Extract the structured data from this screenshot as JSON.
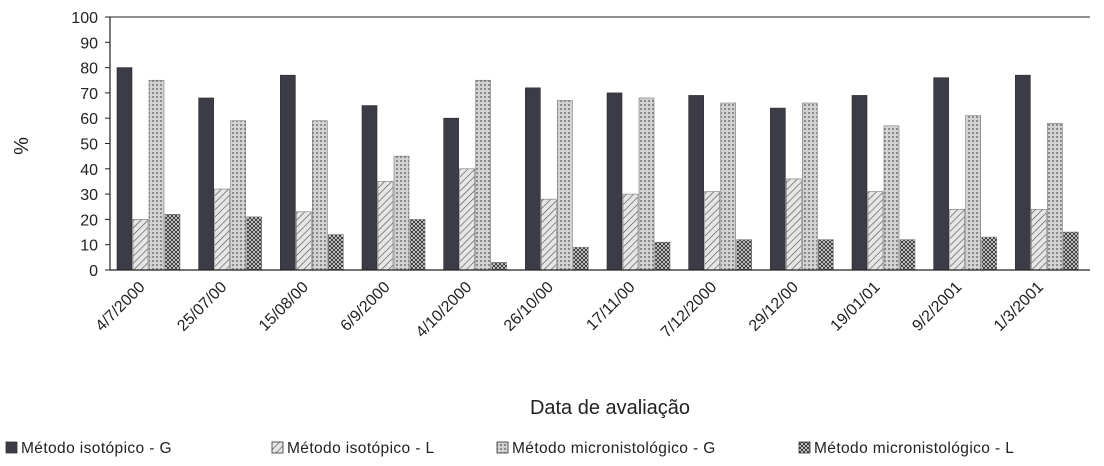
{
  "chart_data": {
    "type": "bar",
    "title": "",
    "xlabel": "Data de avaliação",
    "ylabel": "%",
    "ylim": [
      0,
      100
    ],
    "yticks": [
      "0",
      "10",
      "20",
      "30",
      "40",
      "50",
      "60",
      "70",
      "80",
      "90",
      "100"
    ],
    "categories": [
      "4/7/2000",
      "25/07/00",
      "15/08/00",
      "6/9/2000",
      "4/10/2000",
      "26/10/00",
      "17/11/00",
      "7/12/2000",
      "29/12/00",
      "19/01/01",
      "9/2/2001",
      "1/3/2001"
    ],
    "series": [
      {
        "name": "Método isotópico - G",
        "values": [
          80,
          68,
          77,
          65,
          60,
          72,
          70,
          69,
          64,
          69,
          76,
          77
        ]
      },
      {
        "name": "Método isotópico - L",
        "values": [
          20,
          32,
          23,
          35,
          40,
          28,
          30,
          31,
          36,
          31,
          24,
          24
        ]
      },
      {
        "name": "Método micronistológico - G",
        "values": [
          75,
          59,
          59,
          45,
          75,
          67,
          68,
          66,
          66,
          57,
          61,
          58
        ]
      },
      {
        "name": "Método micronistológico - L",
        "values": [
          22,
          21,
          14,
          20,
          3,
          9,
          11,
          12,
          12,
          12,
          13,
          15
        ]
      }
    ],
    "grid": false,
    "legend_position": "bottom",
    "colors": [
      "#3c3c46",
      "#c9c9c9",
      "#bdbdbd",
      "#7a7a7a"
    ]
  }
}
